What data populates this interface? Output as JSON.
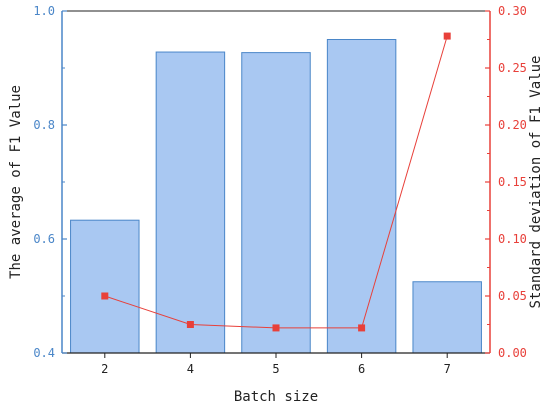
{
  "chart_data": {
    "type": "bar",
    "xlabel": "Batch size",
    "categories": [
      "2",
      "4",
      "5",
      "6",
      "7"
    ],
    "series": [
      {
        "name": "The average of F1 Value",
        "kind": "bar",
        "axis": "left",
        "values": [
          0.633,
          0.928,
          0.927,
          0.95,
          0.525
        ]
      },
      {
        "name": "Standard deviation of F1 Value",
        "kind": "line",
        "axis": "right",
        "values": [
          0.05,
          0.025,
          0.022,
          0.022,
          0.278
        ]
      }
    ],
    "y_left": {
      "label": "The average of F1 Value",
      "ylim": [
        0.4,
        1.0
      ],
      "ticks": [
        "0.4",
        "0.6",
        "0.8",
        "1.0"
      ],
      "color": "#4a86c8"
    },
    "y_right": {
      "label": "Standard deviation of F1 Value",
      "ylim": [
        0.0,
        0.3
      ],
      "ticks": [
        "0.00",
        "0.05",
        "0.10",
        "0.15",
        "0.20",
        "0.25",
        "0.30"
      ],
      "color": "#e8403a"
    },
    "colors": {
      "bar_fill": "#a9c8f2",
      "bar_stroke": "#4a86c8",
      "line": "#e8403a",
      "marker": "#e8403a",
      "axis": "#222222"
    },
    "grid": false,
    "legend": "none"
  }
}
